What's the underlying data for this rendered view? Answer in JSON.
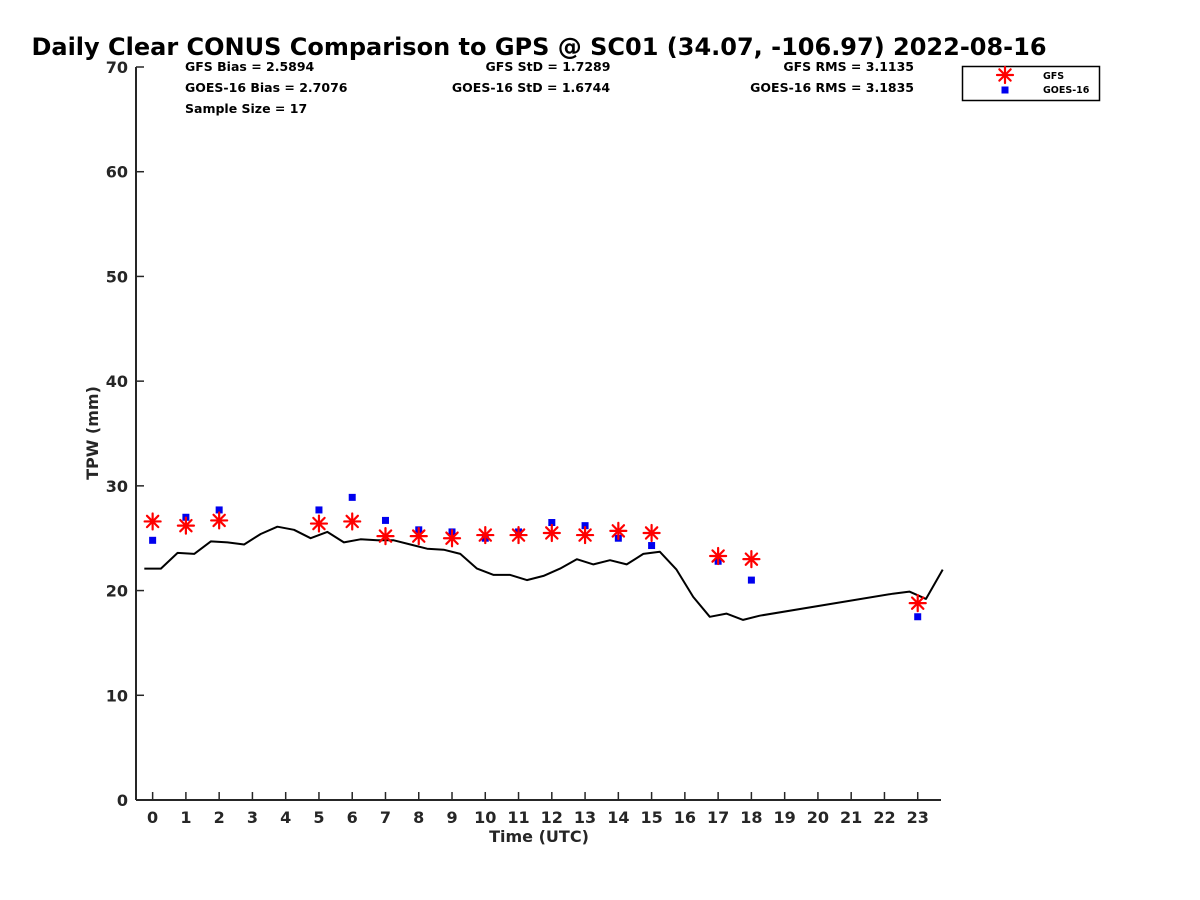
{
  "chart_data": {
    "type": "scatter",
    "title": "Daily Clear CONUS Comparison to GPS @ SC01 (34.07, -106.97) 2022-08-16",
    "xlabel": "Time (UTC)",
    "ylabel": "TPW (mm)",
    "xlim": [
      -0.5,
      23.7
    ],
    "ylim": [
      0,
      70
    ],
    "xticks": [
      0,
      1,
      2,
      3,
      4,
      5,
      6,
      7,
      8,
      9,
      10,
      11,
      12,
      13,
      14,
      15,
      16,
      17,
      18,
      19,
      20,
      21,
      22,
      23
    ],
    "yticks": [
      0,
      10,
      20,
      30,
      40,
      50,
      60,
      70
    ],
    "grid": false,
    "legend_position": "top-right",
    "stats": {
      "gfs_bias": "GFS Bias = 2.5894",
      "goes_bias": "GOES-16 Bias = 2.7076",
      "sample_size": "Sample Size = 17",
      "gfs_std": "GFS StD = 1.7289",
      "goes_std": "GOES-16 StD = 1.6744",
      "gfs_rms": "GFS RMS = 3.1135",
      "goes_rms": "GOES-16 RMS = 3.1835"
    },
    "series": [
      {
        "name": "GPS",
        "kind": "line",
        "color": "#000000",
        "x": [
          -0.25,
          0.25,
          0.75,
          1.25,
          1.75,
          2.25,
          2.75,
          3.25,
          3.75,
          4.25,
          4.75,
          5.25,
          5.75,
          6.25,
          6.75,
          7.25,
          7.75,
          8.25,
          8.75,
          9.25,
          9.75,
          10.25,
          10.75,
          11.25,
          11.75,
          12.25,
          12.75,
          13.25,
          13.75,
          14.25,
          14.75,
          15.25,
          15.75,
          16.25,
          16.75,
          17.25,
          17.75,
          18.25,
          22.25,
          22.75,
          23.25,
          23.75
        ],
        "y": [
          22.1,
          22.1,
          23.6,
          23.5,
          24.7,
          24.6,
          24.4,
          25.4,
          26.1,
          25.8,
          25.0,
          25.6,
          24.6,
          24.9,
          24.8,
          24.8,
          24.4,
          24.0,
          23.9,
          23.5,
          22.1,
          21.5,
          21.5,
          21.0,
          21.4,
          22.1,
          23.0,
          22.5,
          22.9,
          22.5,
          23.5,
          23.7,
          22.0,
          19.4,
          17.5,
          17.8,
          17.2,
          17.6,
          19.7,
          19.9,
          19.2,
          22.0
        ]
      },
      {
        "name": "GFS",
        "kind": "asterisk",
        "color": "#ff0000",
        "x": [
          0,
          1,
          2,
          5,
          6,
          7,
          8,
          9,
          10,
          11,
          12,
          13,
          14,
          15,
          17,
          18,
          23
        ],
        "y": [
          26.6,
          26.2,
          26.7,
          26.4,
          26.6,
          25.2,
          25.2,
          25.0,
          25.3,
          25.3,
          25.5,
          25.3,
          25.7,
          25.5,
          23.3,
          23.0,
          18.8
        ]
      },
      {
        "name": "GOES-16",
        "kind": "square",
        "color": "#0000ee",
        "x": [
          0,
          1,
          2,
          5,
          6,
          7,
          8,
          9,
          10,
          11,
          12,
          13,
          14,
          15,
          17,
          18,
          23
        ],
        "y": [
          24.8,
          27.0,
          27.7,
          27.7,
          28.9,
          26.7,
          25.8,
          25.6,
          25.0,
          25.6,
          26.5,
          26.2,
          25.0,
          24.3,
          22.8,
          21.0,
          17.5
        ]
      }
    ],
    "legend": {
      "items": [
        {
          "label": "GFS",
          "symbol": "asterisk",
          "color": "#ff0000"
        },
        {
          "label": "GOES-16",
          "symbol": "square",
          "color": "#0000ee"
        }
      ]
    }
  }
}
